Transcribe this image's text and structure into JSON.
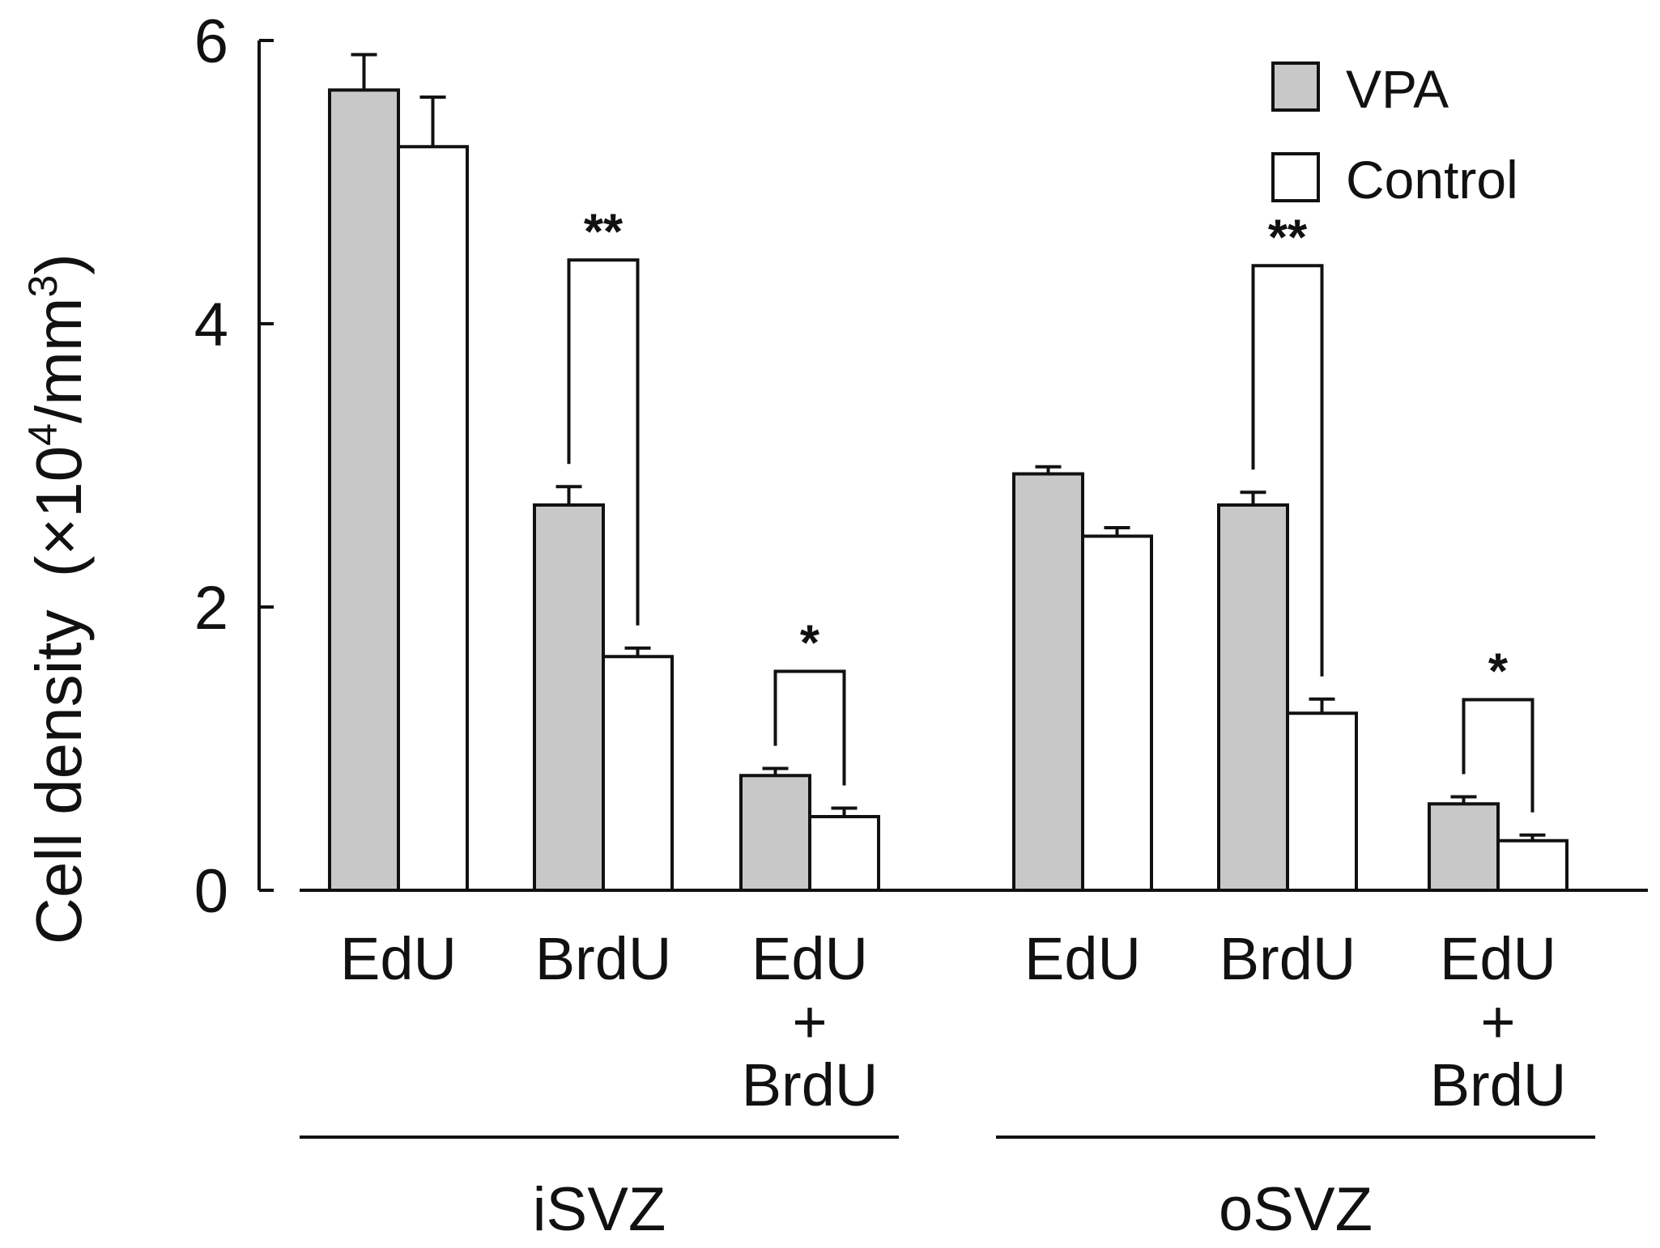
{
  "chart_data": {
    "type": "bar",
    "title": "",
    "ylabel": "Cell density",
    "ylabel_unit": "(×10",
    "ylabel_exp": "4",
    "ylabel_unit_mid": "/mm",
    "ylabel_exp2": "3",
    "ylabel_close": ")",
    "ylim": [
      0,
      6
    ],
    "yticks": [
      0,
      2,
      4,
      6
    ],
    "groups": [
      {
        "name": "iSVZ",
        "categories": [
          [
            "EdU"
          ],
          [
            "BrdU"
          ],
          [
            "EdU",
            "+",
            "BrdU"
          ]
        ]
      },
      {
        "name": "oSVZ",
        "categories": [
          [
            "EdU"
          ],
          [
            "BrdU"
          ],
          [
            "EdU",
            "+",
            "BrdU"
          ]
        ]
      }
    ],
    "series": [
      {
        "name": "VPA",
        "color": "#c8c8c8",
        "values": [
          5.65,
          2.72,
          0.81,
          2.94,
          2.72,
          0.61
        ],
        "errors": [
          0.25,
          0.13,
          0.05,
          0.05,
          0.09,
          0.05
        ]
      },
      {
        "name": "Control",
        "color": "#ffffff",
        "values": [
          5.25,
          1.65,
          0.52,
          2.5,
          1.25,
          0.35
        ],
        "errors": [
          0.35,
          0.06,
          0.06,
          0.06,
          0.1,
          0.04
        ]
      }
    ],
    "significance": [
      {
        "category_index": 1,
        "label": "**"
      },
      {
        "category_index": 2,
        "label": "*"
      },
      {
        "category_index": 4,
        "label": "**"
      },
      {
        "category_index": 5,
        "label": "*"
      }
    ],
    "legend": {
      "position": "top-right",
      "entries": [
        "VPA",
        "Control"
      ]
    }
  }
}
